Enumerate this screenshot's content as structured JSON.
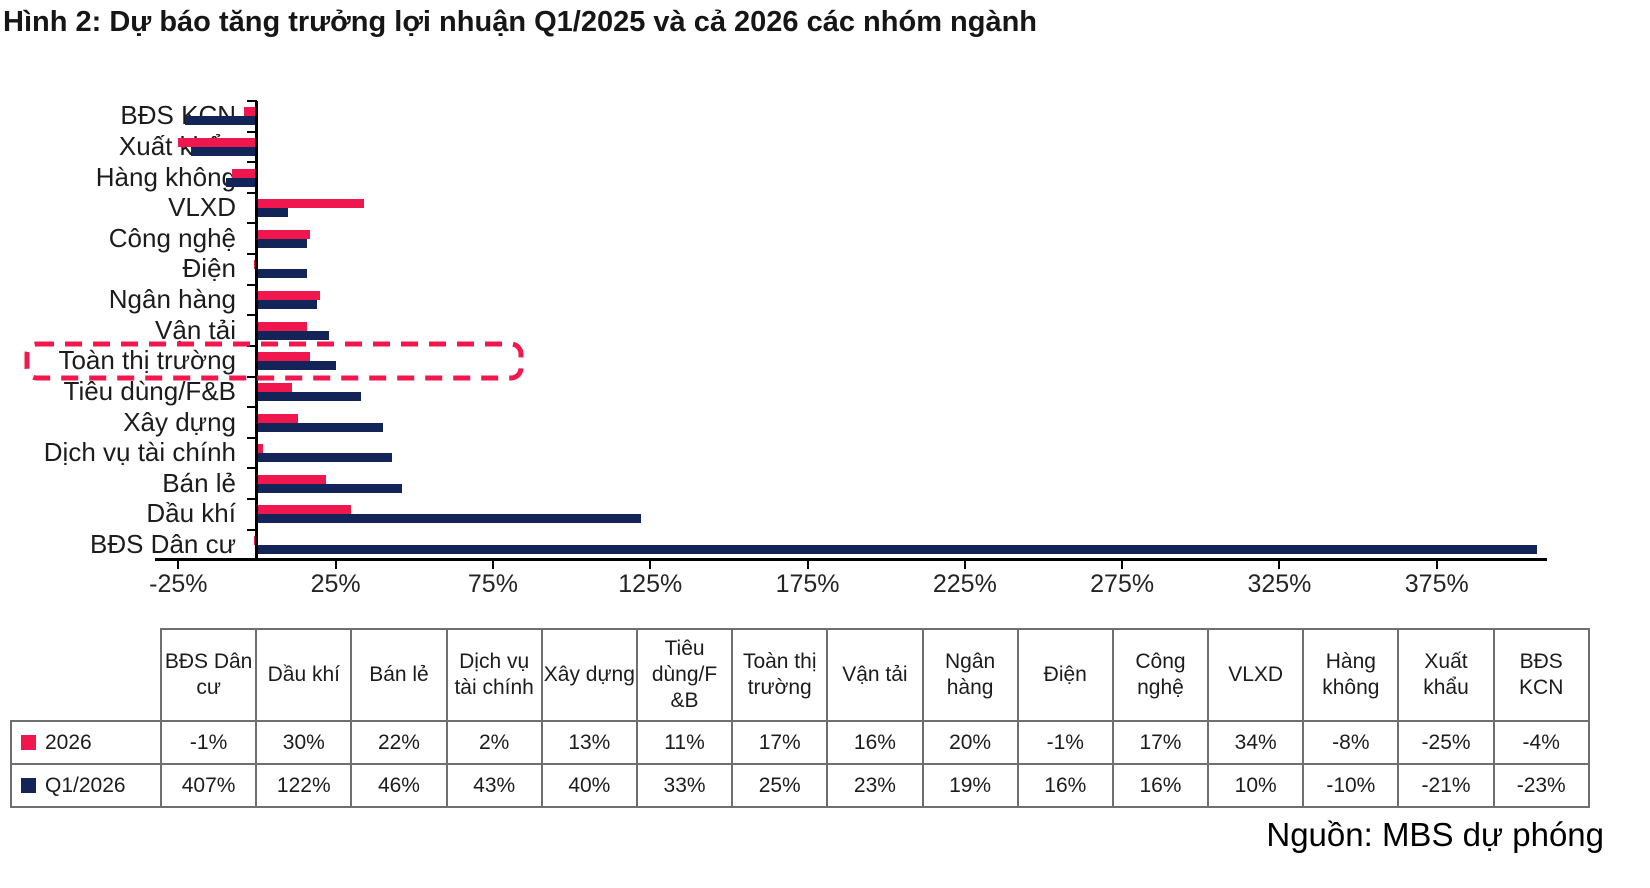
{
  "title": "Hình 2: Dự báo tăng trưởng lợi nhuận Q1/2025 và cả 2026 các nhóm ngành",
  "source": "Nguồn: MBS dự phóng",
  "colors": {
    "series_2026": "#F0164E",
    "series_q1": "#132558",
    "highlight_box": "#F2184E",
    "axis": "#000000",
    "table_border": "#6f6f6f"
  },
  "chart_data": {
    "type": "bar",
    "orientation": "horizontal",
    "title": "Hình 2: Dự báo tăng trưởng lợi nhuận Q1/2025 và cả 2026 các nhóm ngành",
    "xlabel": "",
    "ylabel": "",
    "xlim": [
      -32,
      410
    ],
    "x_tick_labels": [
      "-25%",
      "25%",
      "75%",
      "125%",
      "175%",
      "225%",
      "275%",
      "325%",
      "375%"
    ],
    "grid": false,
    "legend_position": "table-below",
    "categories": [
      "BĐS KCN",
      "Xuất khẩu",
      "Hàng không",
      "VLXD",
      "Công nghệ",
      "Điện",
      "Ngân hàng",
      "Vận tải",
      "Toàn thị trường",
      "Tiêu dùng/F&B",
      "Xây dựng",
      "Dịch vụ tài chính",
      "Bán lẻ",
      "Dầu khí",
      "BĐS Dân cư"
    ],
    "series": [
      {
        "name": "2026",
        "color": "#F0164E",
        "values": [
          -4,
          -25,
          -8,
          34,
          17,
          -1,
          20,
          16,
          17,
          11,
          13,
          2,
          22,
          30,
          -1
        ]
      },
      {
        "name": "Q1/2026",
        "color": "#132558",
        "values": [
          -23,
          -21,
          -10,
          10,
          16,
          16,
          19,
          23,
          25,
          33,
          40,
          43,
          46,
          122,
          407
        ]
      }
    ],
    "highlighted_category": "Toàn thị trường"
  },
  "table": {
    "columns": [
      "BĐS Dân cư",
      "Dầu khí",
      "Bán lẻ",
      "Dịch vụ tài chính",
      "Xây dựng",
      "Tiêu dùng/F &B",
      "Toàn thị trường",
      "Vận tải",
      "Ngân hàng",
      "Điện",
      "Công nghệ",
      "VLXD",
      "Hàng không",
      "Xuất khẩu",
      "BĐS KCN"
    ],
    "rows": [
      {
        "label": "2026",
        "marker_color": "#F0164E",
        "values": [
          "-1%",
          "30%",
          "22%",
          "2%",
          "13%",
          "11%",
          "17%",
          "16%",
          "20%",
          "-1%",
          "17%",
          "34%",
          "-8%",
          "-25%",
          "-4%"
        ]
      },
      {
        "label": "Q1/2026",
        "marker_color": "#132558",
        "values": [
          "407%",
          "122%",
          "46%",
          "43%",
          "40%",
          "33%",
          "25%",
          "23%",
          "19%",
          "16%",
          "16%",
          "10%",
          "-10%",
          "-21%",
          "-23%"
        ]
      }
    ]
  }
}
